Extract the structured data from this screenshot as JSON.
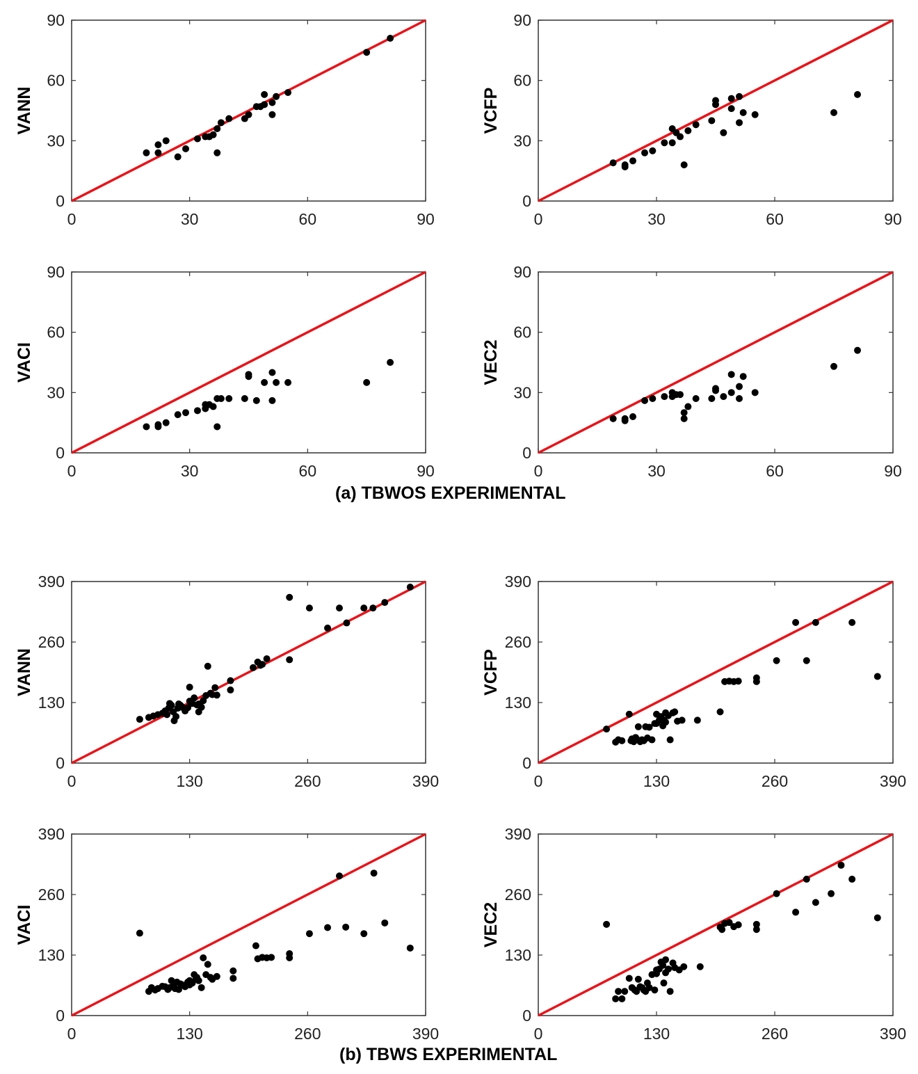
{
  "captions": {
    "top": "(a) TBWOS EXPERIMENTAL",
    "bottom": "(b) TBWS EXPERIMENTAL"
  },
  "colors": {
    "reference_line": "#e8141a",
    "points": "#000000",
    "axes": "#333333"
  },
  "chart_data": [
    {
      "id": "a-vann",
      "type": "scatter",
      "ylabel": "VANN",
      "xlabel": "",
      "xlim": [
        0,
        90
      ],
      "ylim": [
        0,
        90
      ],
      "ticks": [
        0,
        30,
        60,
        90
      ],
      "reference_line": [
        [
          0,
          0
        ],
        [
          90,
          90
        ]
      ],
      "points": [
        [
          19,
          24
        ],
        [
          22,
          28
        ],
        [
          22,
          24
        ],
        [
          24,
          30
        ],
        [
          27,
          22
        ],
        [
          29,
          26
        ],
        [
          32,
          31
        ],
        [
          34,
          32
        ],
        [
          35,
          32
        ],
        [
          36,
          33
        ],
        [
          37,
          36
        ],
        [
          37,
          24
        ],
        [
          38,
          39
        ],
        [
          40,
          41
        ],
        [
          44,
          41
        ],
        [
          45,
          43
        ],
        [
          47,
          47
        ],
        [
          48,
          47
        ],
        [
          49,
          53
        ],
        [
          49,
          48
        ],
        [
          51,
          49
        ],
        [
          51,
          43
        ],
        [
          52,
          52
        ],
        [
          55,
          54
        ],
        [
          75,
          74
        ],
        [
          81,
          81
        ]
      ]
    },
    {
      "id": "a-vcfp",
      "type": "scatter",
      "ylabel": "VCFP",
      "xlabel": "",
      "xlim": [
        0,
        90
      ],
      "ylim": [
        0,
        90
      ],
      "ticks": [
        0,
        30,
        60,
        90
      ],
      "reference_line": [
        [
          0,
          0
        ],
        [
          90,
          90
        ]
      ],
      "points": [
        [
          19,
          19
        ],
        [
          22,
          17
        ],
        [
          22,
          18
        ],
        [
          24,
          20
        ],
        [
          27,
          24
        ],
        [
          29,
          25
        ],
        [
          32,
          29
        ],
        [
          34,
          29
        ],
        [
          34,
          36
        ],
        [
          35,
          34
        ],
        [
          36,
          32
        ],
        [
          37,
          18
        ],
        [
          38,
          35
        ],
        [
          40,
          38
        ],
        [
          44,
          40
        ],
        [
          45,
          48
        ],
        [
          45,
          50
        ],
        [
          47,
          34
        ],
        [
          49,
          51
        ],
        [
          49,
          46
        ],
        [
          51,
          39
        ],
        [
          51,
          52
        ],
        [
          52,
          44
        ],
        [
          55,
          43
        ],
        [
          75,
          44
        ],
        [
          81,
          53
        ]
      ]
    },
    {
      "id": "a-vaci",
      "type": "scatter",
      "ylabel": "VACI",
      "xlabel": "",
      "xlim": [
        0,
        90
      ],
      "ylim": [
        0,
        90
      ],
      "ticks": [
        0,
        30,
        60,
        90
      ],
      "reference_line": [
        [
          0,
          0
        ],
        [
          90,
          90
        ]
      ],
      "points": [
        [
          19,
          13
        ],
        [
          22,
          14
        ],
        [
          22,
          13
        ],
        [
          24,
          15
        ],
        [
          27,
          19
        ],
        [
          29,
          20
        ],
        [
          32,
          21
        ],
        [
          34,
          22
        ],
        [
          34,
          24
        ],
        [
          35,
          24
        ],
        [
          36,
          23
        ],
        [
          37,
          13
        ],
        [
          37,
          27
        ],
        [
          38,
          27
        ],
        [
          40,
          27
        ],
        [
          44,
          27
        ],
        [
          45,
          38
        ],
        [
          45,
          39
        ],
        [
          47,
          26
        ],
        [
          49,
          35
        ],
        [
          51,
          26
        ],
        [
          51,
          40
        ],
        [
          52,
          35
        ],
        [
          55,
          35
        ],
        [
          75,
          35
        ],
        [
          81,
          45
        ]
      ]
    },
    {
      "id": "a-vec2",
      "type": "scatter",
      "ylabel": "VEC2",
      "xlabel": "",
      "xlim": [
        0,
        90
      ],
      "ylim": [
        0,
        90
      ],
      "ticks": [
        0,
        30,
        60,
        90
      ],
      "reference_line": [
        [
          0,
          0
        ],
        [
          90,
          90
        ]
      ],
      "points": [
        [
          19,
          17
        ],
        [
          22,
          17
        ],
        [
          22,
          16
        ],
        [
          24,
          18
        ],
        [
          27,
          26
        ],
        [
          29,
          27
        ],
        [
          32,
          28
        ],
        [
          34,
          28
        ],
        [
          34,
          30
        ],
        [
          35,
          29
        ],
        [
          36,
          29
        ],
        [
          37,
          20
        ],
        [
          37,
          17
        ],
        [
          38,
          23
        ],
        [
          40,
          27
        ],
        [
          44,
          27
        ],
        [
          45,
          32
        ],
        [
          45,
          31
        ],
        [
          47,
          28
        ],
        [
          49,
          39
        ],
        [
          49,
          30
        ],
        [
          51,
          27
        ],
        [
          51,
          33
        ],
        [
          52,
          38
        ],
        [
          55,
          30
        ],
        [
          75,
          43
        ],
        [
          81,
          51
        ]
      ]
    },
    {
      "id": "b-vann",
      "type": "scatter",
      "ylabel": "VANN",
      "xlabel": "",
      "xlim": [
        0,
        390
      ],
      "ylim": [
        0,
        390
      ],
      "ticks": [
        0,
        130,
        260,
        390
      ],
      "reference_line": [
        [
          0,
          0
        ],
        [
          390,
          390
        ]
      ],
      "points": [
        [
          75,
          94
        ],
        [
          85,
          98
        ],
        [
          90,
          101
        ],
        [
          95,
          104
        ],
        [
          100,
          107
        ],
        [
          103,
          112
        ],
        [
          105,
          104
        ],
        [
          107,
          118
        ],
        [
          108,
          128
        ],
        [
          110,
          124
        ],
        [
          112,
          110
        ],
        [
          113,
          91
        ],
        [
          115,
          100
        ],
        [
          117,
          118
        ],
        [
          118,
          127
        ],
        [
          120,
          124
        ],
        [
          122,
          120
        ],
        [
          125,
          112
        ],
        [
          128,
          119
        ],
        [
          130,
          133
        ],
        [
          130,
          163
        ],
        [
          133,
          128
        ],
        [
          135,
          140
        ],
        [
          138,
          125
        ],
        [
          140,
          127
        ],
        [
          140,
          110
        ],
        [
          143,
          120
        ],
        [
          145,
          134
        ],
        [
          148,
          145
        ],
        [
          150,
          208
        ],
        [
          153,
          150
        ],
        [
          155,
          147
        ],
        [
          158,
          162
        ],
        [
          160,
          146
        ],
        [
          175,
          177
        ],
        [
          175,
          157
        ],
        [
          200,
          205
        ],
        [
          205,
          217
        ],
        [
          208,
          210
        ],
        [
          210,
          212
        ],
        [
          215,
          224
        ],
        [
          240,
          222
        ],
        [
          240,
          356
        ],
        [
          262,
          333
        ],
        [
          282,
          290
        ],
        [
          295,
          333
        ],
        [
          303,
          301
        ],
        [
          322,
          333
        ],
        [
          332,
          333
        ],
        [
          345,
          345
        ],
        [
          373,
          378
        ]
      ]
    },
    {
      "id": "b-vcfp",
      "type": "scatter",
      "ylabel": "VCFP",
      "xlabel": "",
      "xlim": [
        0,
        390
      ],
      "ylim": [
        0,
        390
      ],
      "ticks": [
        0,
        130,
        260,
        390
      ],
      "reference_line": [
        [
          0,
          0
        ],
        [
          390,
          390
        ]
      ],
      "points": [
        [
          75,
          73
        ],
        [
          85,
          45
        ],
        [
          88,
          50
        ],
        [
          92,
          48
        ],
        [
          100,
          105
        ],
        [
          102,
          48
        ],
        [
          103,
          52
        ],
        [
          105,
          46
        ],
        [
          107,
          55
        ],
        [
          108,
          52
        ],
        [
          110,
          78
        ],
        [
          112,
          46
        ],
        [
          114,
          50
        ],
        [
          116,
          48
        ],
        [
          118,
          78
        ],
        [
          120,
          54
        ],
        [
          122,
          77
        ],
        [
          125,
          50
        ],
        [
          128,
          85
        ],
        [
          130,
          85
        ],
        [
          130,
          105
        ],
        [
          133,
          92
        ],
        [
          135,
          100
        ],
        [
          137,
          80
        ],
        [
          138,
          92
        ],
        [
          140,
          108
        ],
        [
          140,
          88
        ],
        [
          143,
          102
        ],
        [
          145,
          50
        ],
        [
          148,
          108
        ],
        [
          150,
          110
        ],
        [
          153,
          90
        ],
        [
          158,
          92
        ],
        [
          175,
          92
        ],
        [
          200,
          110
        ],
        [
          205,
          175
        ],
        [
          210,
          176
        ],
        [
          215,
          175
        ],
        [
          220,
          176
        ],
        [
          240,
          175
        ],
        [
          240,
          183
        ],
        [
          262,
          220
        ],
        [
          283,
          302
        ],
        [
          295,
          220
        ],
        [
          305,
          302
        ],
        [
          345,
          302
        ],
        [
          373,
          186
        ]
      ]
    },
    {
      "id": "b-vaci",
      "type": "scatter",
      "ylabel": "VACI",
      "xlabel": "",
      "xlim": [
        0,
        390
      ],
      "ylim": [
        0,
        390
      ],
      "ticks": [
        0,
        130,
        260,
        390
      ],
      "reference_line": [
        [
          0,
          0
        ],
        [
          390,
          390
        ]
      ],
      "points": [
        [
          75,
          177
        ],
        [
          85,
          52
        ],
        [
          88,
          60
        ],
        [
          92,
          55
        ],
        [
          95,
          58
        ],
        [
          100,
          63
        ],
        [
          103,
          62
        ],
        [
          106,
          56
        ],
        [
          108,
          60
        ],
        [
          110,
          75
        ],
        [
          112,
          64
        ],
        [
          114,
          58
        ],
        [
          116,
          72
        ],
        [
          118,
          56
        ],
        [
          120,
          68
        ],
        [
          122,
          66
        ],
        [
          125,
          62
        ],
        [
          128,
          72
        ],
        [
          130,
          75
        ],
        [
          130,
          66
        ],
        [
          133,
          70
        ],
        [
          135,
          88
        ],
        [
          137,
          78
        ],
        [
          138,
          82
        ],
        [
          140,
          75
        ],
        [
          143,
          60
        ],
        [
          145,
          124
        ],
        [
          148,
          88
        ],
        [
          150,
          110
        ],
        [
          153,
          82
        ],
        [
          155,
          78
        ],
        [
          160,
          84
        ],
        [
          178,
          96
        ],
        [
          178,
          80
        ],
        [
          203,
          150
        ],
        [
          205,
          122
        ],
        [
          210,
          125
        ],
        [
          215,
          124
        ],
        [
          220,
          125
        ],
        [
          240,
          124
        ],
        [
          240,
          133
        ],
        [
          262,
          176
        ],
        [
          282,
          189
        ],
        [
          295,
          300
        ],
        [
          302,
          190
        ],
        [
          322,
          176
        ],
        [
          333,
          306
        ],
        [
          345,
          199
        ],
        [
          373,
          145
        ]
      ]
    },
    {
      "id": "b-vec2",
      "type": "scatter",
      "ylabel": "VEC2",
      "xlabel": "",
      "xlim": [
        0,
        390
      ],
      "ylim": [
        0,
        390
      ],
      "ticks": [
        0,
        130,
        260,
        390
      ],
      "reference_line": [
        [
          0,
          0
        ],
        [
          390,
          390
        ]
      ],
      "points": [
        [
          75,
          196
        ],
        [
          85,
          36
        ],
        [
          88,
          52
        ],
        [
          92,
          36
        ],
        [
          95,
          52
        ],
        [
          100,
          80
        ],
        [
          103,
          60
        ],
        [
          106,
          55
        ],
        [
          108,
          52
        ],
        [
          110,
          78
        ],
        [
          112,
          62
        ],
        [
          114,
          60
        ],
        [
          116,
          55
        ],
        [
          118,
          52
        ],
        [
          120,
          70
        ],
        [
          122,
          60
        ],
        [
          125,
          88
        ],
        [
          128,
          55
        ],
        [
          130,
          98
        ],
        [
          130,
          90
        ],
        [
          133,
          100
        ],
        [
          135,
          115
        ],
        [
          137,
          108
        ],
        [
          138,
          70
        ],
        [
          140,
          92
        ],
        [
          140,
          120
        ],
        [
          143,
          100
        ],
        [
          145,
          52
        ],
        [
          148,
          113
        ],
        [
          150,
          103
        ],
        [
          155,
          98
        ],
        [
          160,
          105
        ],
        [
          178,
          105
        ],
        [
          200,
          190
        ],
        [
          202,
          185
        ],
        [
          205,
          198
        ],
        [
          210,
          200
        ],
        [
          215,
          191
        ],
        [
          220,
          195
        ],
        [
          240,
          196
        ],
        [
          240,
          185
        ],
        [
          262,
          262
        ],
        [
          283,
          222
        ],
        [
          295,
          293
        ],
        [
          305,
          243
        ],
        [
          322,
          262
        ],
        [
          333,
          323
        ],
        [
          345,
          293
        ],
        [
          373,
          210
        ]
      ]
    }
  ]
}
